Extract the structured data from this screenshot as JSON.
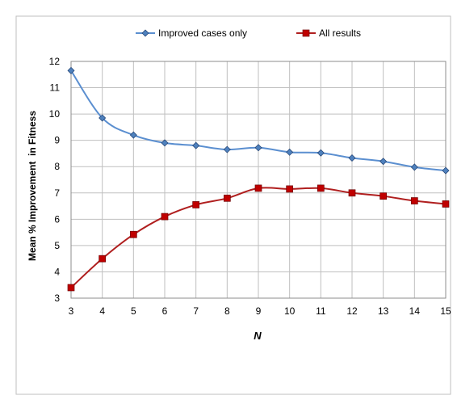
{
  "chart_data": {
    "type": "line",
    "title": "",
    "xlabel": "N",
    "ylabel": "Mean % Improvement  in Fitness",
    "x": [
      3,
      4,
      5,
      6,
      7,
      8,
      9,
      10,
      11,
      12,
      13,
      14,
      15
    ],
    "xlim": [
      3,
      15
    ],
    "ylim": [
      3,
      12
    ],
    "y_ticks": [
      3,
      4,
      5,
      6,
      7,
      8,
      9,
      10,
      11,
      12
    ],
    "grid": "vertical and horizontal",
    "legend_position": "top-center",
    "series": [
      {
        "name": "Improved cases only",
        "color": "#5b8fd0",
        "marker": "diamond",
        "values": [
          11.65,
          9.85,
          9.2,
          8.9,
          8.8,
          8.65,
          8.72,
          8.55,
          8.52,
          8.33,
          8.2,
          7.98,
          7.85
        ]
      },
      {
        "name": "All results",
        "color": "#b01f1f",
        "marker": "square",
        "values": [
          3.4,
          4.5,
          5.42,
          6.1,
          6.55,
          6.8,
          7.18,
          7.15,
          7.18,
          7.0,
          6.88,
          6.7,
          6.58
        ]
      }
    ]
  }
}
